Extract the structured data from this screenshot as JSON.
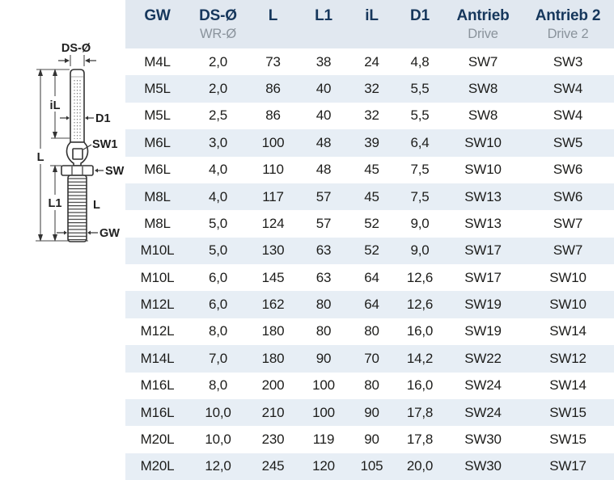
{
  "diagram": {
    "labels": {
      "ds_diameter": "DS-Ø",
      "inner_length": "iL",
      "d1": "D1",
      "sw1": "SW1",
      "overall_length": "L",
      "sw": "SW",
      "l1": "L1",
      "thread_length": "L",
      "gw": "GW"
    }
  },
  "table": {
    "columns": [
      {
        "label": "GW",
        "sub": ""
      },
      {
        "label": "DS-Ø",
        "sub": "WR-Ø"
      },
      {
        "label": "L",
        "sub": ""
      },
      {
        "label": "L1",
        "sub": ""
      },
      {
        "label": "iL",
        "sub": ""
      },
      {
        "label": "D1",
        "sub": ""
      },
      {
        "label": "Antrieb",
        "sub": "Drive"
      },
      {
        "label": "Antrieb 2",
        "sub": "Drive 2"
      }
    ],
    "rows": [
      [
        "M4L",
        "2,0",
        "73",
        "38",
        "24",
        "4,8",
        "SW7",
        "SW3"
      ],
      [
        "M5L",
        "2,0",
        "86",
        "40",
        "32",
        "5,5",
        "SW8",
        "SW4"
      ],
      [
        "M5L",
        "2,5",
        "86",
        "40",
        "32",
        "5,5",
        "SW8",
        "SW4"
      ],
      [
        "M6L",
        "3,0",
        "100",
        "48",
        "39",
        "6,4",
        "SW10",
        "SW5"
      ],
      [
        "M6L",
        "4,0",
        "110",
        "48",
        "45",
        "7,5",
        "SW10",
        "SW6"
      ],
      [
        "M8L",
        "4,0",
        "117",
        "57",
        "45",
        "7,5",
        "SW13",
        "SW6"
      ],
      [
        "M8L",
        "5,0",
        "124",
        "57",
        "52",
        "9,0",
        "SW13",
        "SW7"
      ],
      [
        "M10L",
        "5,0",
        "130",
        "63",
        "52",
        "9,0",
        "SW17",
        "SW7"
      ],
      [
        "M10L",
        "6,0",
        "145",
        "63",
        "64",
        "12,6",
        "SW17",
        "SW10"
      ],
      [
        "M12L",
        "6,0",
        "162",
        "80",
        "64",
        "12,6",
        "SW19",
        "SW10"
      ],
      [
        "M12L",
        "8,0",
        "180",
        "80",
        "80",
        "16,0",
        "SW19",
        "SW14"
      ],
      [
        "M14L",
        "7,0",
        "180",
        "90",
        "70",
        "14,2",
        "SW22",
        "SW12"
      ],
      [
        "M16L",
        "8,0",
        "200",
        "100",
        "80",
        "16,0",
        "SW24",
        "SW14"
      ],
      [
        "M16L",
        "10,0",
        "210",
        "100",
        "90",
        "17,8",
        "SW24",
        "SW15"
      ],
      [
        "M20L",
        "10,0",
        "230",
        "119",
        "90",
        "17,8",
        "SW30",
        "SW15"
      ],
      [
        "M20L",
        "12,0",
        "245",
        "120",
        "105",
        "20,0",
        "SW30",
        "SW17"
      ]
    ]
  },
  "colors": {
    "header_bg": "#e1e8f0",
    "stripe_bg": "#e7eef5",
    "header_text": "#16375c",
    "sub_text": "#8a939c",
    "body_text": "#1d1d1b",
    "line": "#333333"
  }
}
